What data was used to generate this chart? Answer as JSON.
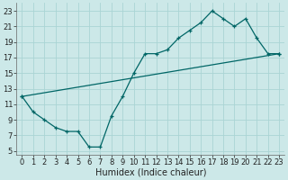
{
  "xlabel": "Humidex (Indice chaleur)",
  "bg_color": "#cce8e8",
  "line_color": "#006666",
  "grid_color": "#aad4d4",
  "xlim": [
    -0.5,
    23.5
  ],
  "ylim": [
    4.5,
    24
  ],
  "xticks": [
    0,
    1,
    2,
    3,
    4,
    5,
    6,
    7,
    8,
    9,
    10,
    11,
    12,
    13,
    14,
    15,
    16,
    17,
    18,
    19,
    20,
    21,
    22,
    23
  ],
  "yticks": [
    5,
    7,
    9,
    11,
    13,
    15,
    17,
    19,
    21,
    23
  ],
  "series1_x": [
    0,
    1,
    2,
    3,
    4,
    5,
    6,
    7,
    8,
    9,
    10,
    11,
    12,
    13,
    14,
    15,
    16,
    17,
    18,
    19,
    20,
    21,
    22,
    23
  ],
  "series1_y": [
    12,
    10,
    9,
    8,
    7.5,
    7.5,
    5.5,
    5.5,
    9.5,
    12,
    15,
    17.5,
    17.5,
    18,
    19.5,
    20.5,
    21.5,
    23,
    22,
    21,
    22,
    19.5,
    17.5,
    17.5
  ],
  "series2_x": [
    0,
    23
  ],
  "series2_y": [
    12,
    17.5
  ],
  "xlabel_fontsize": 7,
  "tick_fontsize": 6,
  "figwidth": 3.2,
  "figheight": 2.0,
  "dpi": 100
}
